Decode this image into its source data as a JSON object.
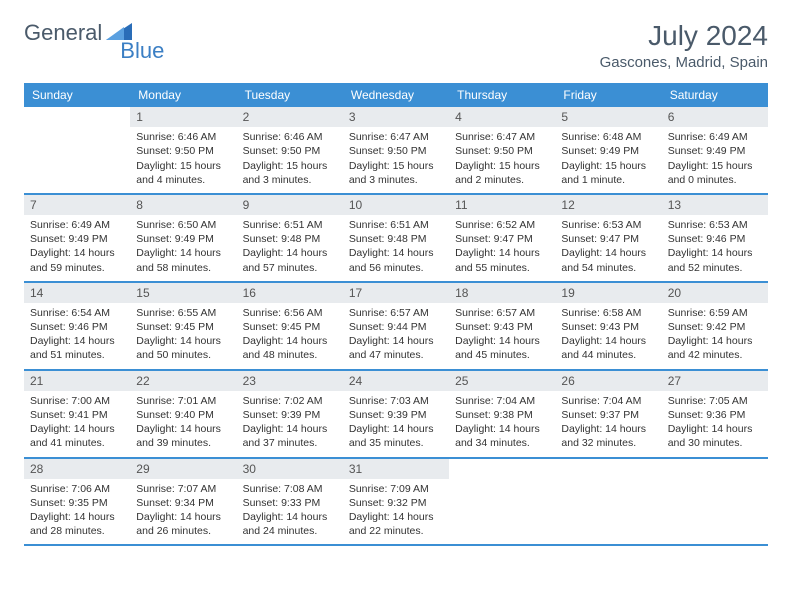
{
  "logo": {
    "text1": "General",
    "text2": "Blue"
  },
  "title": "July 2024",
  "location": "Gascones, Madrid, Spain",
  "colors": {
    "header_bg": "#3b8fd4",
    "header_text": "#ffffff",
    "daynum_bg": "#e8ebee",
    "border": "#3b8fd4",
    "title_color": "#4a5a6a"
  },
  "day_names": [
    "Sunday",
    "Monday",
    "Tuesday",
    "Wednesday",
    "Thursday",
    "Friday",
    "Saturday"
  ],
  "weeks": [
    [
      {
        "n": "",
        "lines": []
      },
      {
        "n": "1",
        "lines": [
          "Sunrise: 6:46 AM",
          "Sunset: 9:50 PM",
          "Daylight: 15 hours and 4 minutes."
        ]
      },
      {
        "n": "2",
        "lines": [
          "Sunrise: 6:46 AM",
          "Sunset: 9:50 PM",
          "Daylight: 15 hours and 3 minutes."
        ]
      },
      {
        "n": "3",
        "lines": [
          "Sunrise: 6:47 AM",
          "Sunset: 9:50 PM",
          "Daylight: 15 hours and 3 minutes."
        ]
      },
      {
        "n": "4",
        "lines": [
          "Sunrise: 6:47 AM",
          "Sunset: 9:50 PM",
          "Daylight: 15 hours and 2 minutes."
        ]
      },
      {
        "n": "5",
        "lines": [
          "Sunrise: 6:48 AM",
          "Sunset: 9:49 PM",
          "Daylight: 15 hours and 1 minute."
        ]
      },
      {
        "n": "6",
        "lines": [
          "Sunrise: 6:49 AM",
          "Sunset: 9:49 PM",
          "Daylight: 15 hours and 0 minutes."
        ]
      }
    ],
    [
      {
        "n": "7",
        "lines": [
          "Sunrise: 6:49 AM",
          "Sunset: 9:49 PM",
          "Daylight: 14 hours and 59 minutes."
        ]
      },
      {
        "n": "8",
        "lines": [
          "Sunrise: 6:50 AM",
          "Sunset: 9:49 PM",
          "Daylight: 14 hours and 58 minutes."
        ]
      },
      {
        "n": "9",
        "lines": [
          "Sunrise: 6:51 AM",
          "Sunset: 9:48 PM",
          "Daylight: 14 hours and 57 minutes."
        ]
      },
      {
        "n": "10",
        "lines": [
          "Sunrise: 6:51 AM",
          "Sunset: 9:48 PM",
          "Daylight: 14 hours and 56 minutes."
        ]
      },
      {
        "n": "11",
        "lines": [
          "Sunrise: 6:52 AM",
          "Sunset: 9:47 PM",
          "Daylight: 14 hours and 55 minutes."
        ]
      },
      {
        "n": "12",
        "lines": [
          "Sunrise: 6:53 AM",
          "Sunset: 9:47 PM",
          "Daylight: 14 hours and 54 minutes."
        ]
      },
      {
        "n": "13",
        "lines": [
          "Sunrise: 6:53 AM",
          "Sunset: 9:46 PM",
          "Daylight: 14 hours and 52 minutes."
        ]
      }
    ],
    [
      {
        "n": "14",
        "lines": [
          "Sunrise: 6:54 AM",
          "Sunset: 9:46 PM",
          "Daylight: 14 hours and 51 minutes."
        ]
      },
      {
        "n": "15",
        "lines": [
          "Sunrise: 6:55 AM",
          "Sunset: 9:45 PM",
          "Daylight: 14 hours and 50 minutes."
        ]
      },
      {
        "n": "16",
        "lines": [
          "Sunrise: 6:56 AM",
          "Sunset: 9:45 PM",
          "Daylight: 14 hours and 48 minutes."
        ]
      },
      {
        "n": "17",
        "lines": [
          "Sunrise: 6:57 AM",
          "Sunset: 9:44 PM",
          "Daylight: 14 hours and 47 minutes."
        ]
      },
      {
        "n": "18",
        "lines": [
          "Sunrise: 6:57 AM",
          "Sunset: 9:43 PM",
          "Daylight: 14 hours and 45 minutes."
        ]
      },
      {
        "n": "19",
        "lines": [
          "Sunrise: 6:58 AM",
          "Sunset: 9:43 PM",
          "Daylight: 14 hours and 44 minutes."
        ]
      },
      {
        "n": "20",
        "lines": [
          "Sunrise: 6:59 AM",
          "Sunset: 9:42 PM",
          "Daylight: 14 hours and 42 minutes."
        ]
      }
    ],
    [
      {
        "n": "21",
        "lines": [
          "Sunrise: 7:00 AM",
          "Sunset: 9:41 PM",
          "Daylight: 14 hours and 41 minutes."
        ]
      },
      {
        "n": "22",
        "lines": [
          "Sunrise: 7:01 AM",
          "Sunset: 9:40 PM",
          "Daylight: 14 hours and 39 minutes."
        ]
      },
      {
        "n": "23",
        "lines": [
          "Sunrise: 7:02 AM",
          "Sunset: 9:39 PM",
          "Daylight: 14 hours and 37 minutes."
        ]
      },
      {
        "n": "24",
        "lines": [
          "Sunrise: 7:03 AM",
          "Sunset: 9:39 PM",
          "Daylight: 14 hours and 35 minutes."
        ]
      },
      {
        "n": "25",
        "lines": [
          "Sunrise: 7:04 AM",
          "Sunset: 9:38 PM",
          "Daylight: 14 hours and 34 minutes."
        ]
      },
      {
        "n": "26",
        "lines": [
          "Sunrise: 7:04 AM",
          "Sunset: 9:37 PM",
          "Daylight: 14 hours and 32 minutes."
        ]
      },
      {
        "n": "27",
        "lines": [
          "Sunrise: 7:05 AM",
          "Sunset: 9:36 PM",
          "Daylight: 14 hours and 30 minutes."
        ]
      }
    ],
    [
      {
        "n": "28",
        "lines": [
          "Sunrise: 7:06 AM",
          "Sunset: 9:35 PM",
          "Daylight: 14 hours and 28 minutes."
        ]
      },
      {
        "n": "29",
        "lines": [
          "Sunrise: 7:07 AM",
          "Sunset: 9:34 PM",
          "Daylight: 14 hours and 26 minutes."
        ]
      },
      {
        "n": "30",
        "lines": [
          "Sunrise: 7:08 AM",
          "Sunset: 9:33 PM",
          "Daylight: 14 hours and 24 minutes."
        ]
      },
      {
        "n": "31",
        "lines": [
          "Sunrise: 7:09 AM",
          "Sunset: 9:32 PM",
          "Daylight: 14 hours and 22 minutes."
        ]
      },
      {
        "n": "",
        "lines": []
      },
      {
        "n": "",
        "lines": []
      },
      {
        "n": "",
        "lines": []
      }
    ]
  ]
}
